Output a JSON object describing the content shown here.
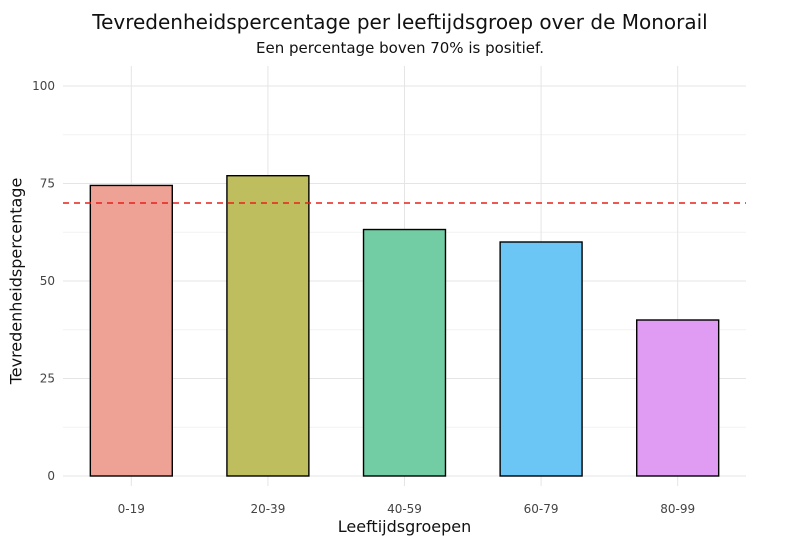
{
  "chart_data": {
    "type": "bar",
    "title": "Tevredenheidspercentage per leeftijdsgroep over de Monorail",
    "subtitle": "Een percentage boven 70% is positief.",
    "xlabel": "Leeftijdsgroepen",
    "ylabel": "Tevredenheidspercentage",
    "categories": [
      "0-19",
      "20-39",
      "40-59",
      "60-79",
      "80-99"
    ],
    "values": [
      74.5,
      77,
      63.2,
      60,
      40
    ],
    "colors": [
      "#eea296",
      "#bebe5e",
      "#72cda5",
      "#6bc5f5",
      "#e09cf2"
    ],
    "ylim": [
      0,
      100
    ],
    "yticks": [
      0,
      25,
      50,
      75,
      100
    ],
    "reference_line": {
      "value": 70,
      "color": "#e8201a",
      "style": "dashed"
    },
    "grid": true,
    "legend": "none"
  }
}
